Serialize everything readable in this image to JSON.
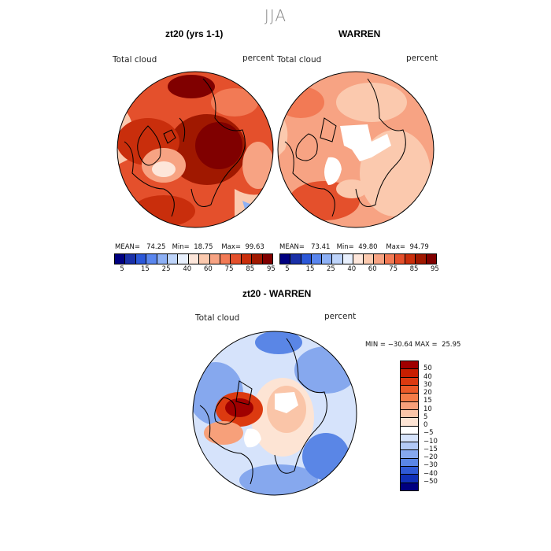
{
  "season": "JJA",
  "panels": [
    {
      "title": "zt20 (yrs 1-1)",
      "variable": "Total cloud",
      "units": "percent",
      "stats": {
        "mean_label": "MEAN=",
        "mean": "74.25",
        "min_label": "Min=",
        "min": "18.75",
        "max_label": "Max=",
        "max": "99.63"
      }
    },
    {
      "title": "WARREN",
      "variable": "Total cloud",
      "units": "percent",
      "stats": {
        "mean_label": "MEAN=",
        "mean": "73.41",
        "min_label": "Min=",
        "min": "49.80",
        "max_label": "Max=",
        "max": "94.79"
      }
    }
  ],
  "colorbar_labels": [
    "5",
    "15",
    "25",
    "40",
    "60",
    "75",
    "85",
    "95"
  ],
  "colorbar_colors": [
    "#000080",
    "#1a30a8",
    "#2c58d8",
    "#5a86ee",
    "#8db0f5",
    "#bed4fa",
    "#e8f0fd",
    "#fde6da",
    "#fbc9ae",
    "#f7a383",
    "#f27a55",
    "#e4502c",
    "#c92e0c",
    "#a01800",
    "#800000"
  ],
  "diff_panel": {
    "title": "zt20 - WARREN",
    "variable": "Total cloud",
    "units": "percent",
    "minmax": "MIN = −30.64 MAX =  25.95",
    "legend_labels": [
      "50",
      "40",
      "30",
      "20",
      "15",
      "10",
      "5",
      "0",
      "−5",
      "−10",
      "−15",
      "−20",
      "−30",
      "−40",
      "−50"
    ],
    "legend_colors": [
      "#a00000",
      "#c81e00",
      "#dc3a10",
      "#ec5a28",
      "#f47c48",
      "#f7a07a",
      "#fac5a8",
      "#fde4d4",
      "#ffffff",
      "#d6e3fb",
      "#b2c9f6",
      "#86a8ee",
      "#5a86e6",
      "#2f5ad6",
      "#1030b8",
      "#000080"
    ]
  }
}
